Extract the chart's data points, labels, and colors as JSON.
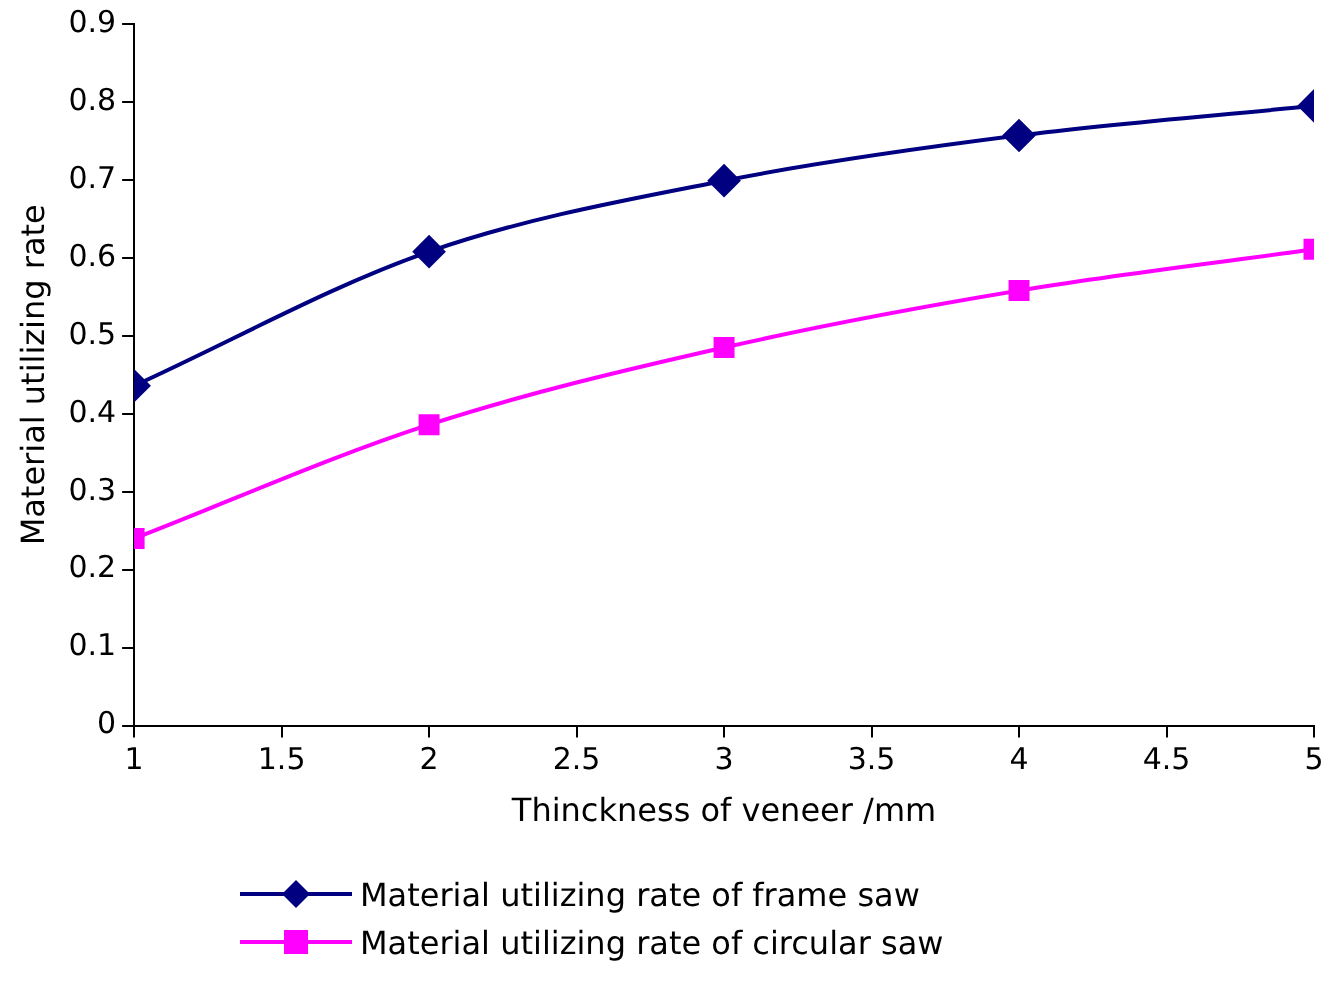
{
  "chart_data": {
    "type": "line",
    "xlabel": "Thinckness of veneer /mm",
    "ylabel": "Material utilizing rate",
    "x": [
      1,
      2,
      3,
      4,
      5
    ],
    "series": [
      {
        "name": "Material utilizing rate of frame saw",
        "color": "#000080",
        "marker": "diamond",
        "values": [
          0.436,
          0.608,
          0.699,
          0.757,
          0.795
        ]
      },
      {
        "name": "Material utilizing rate of circular saw",
        "color": "#ff00ff",
        "marker": "square",
        "values": [
          0.24,
          0.386,
          0.485,
          0.558,
          0.611
        ]
      }
    ],
    "xlim": [
      1,
      5
    ],
    "xticks": [
      1,
      1.5,
      2,
      2.5,
      3,
      3.5,
      4,
      4.5,
      5
    ],
    "ylim": [
      0,
      0.9
    ],
    "yticks": [
      0,
      0.1,
      0.2,
      0.3,
      0.4,
      0.5,
      0.6,
      0.7,
      0.8,
      0.9
    ],
    "grid": false,
    "legend": "bottom"
  }
}
